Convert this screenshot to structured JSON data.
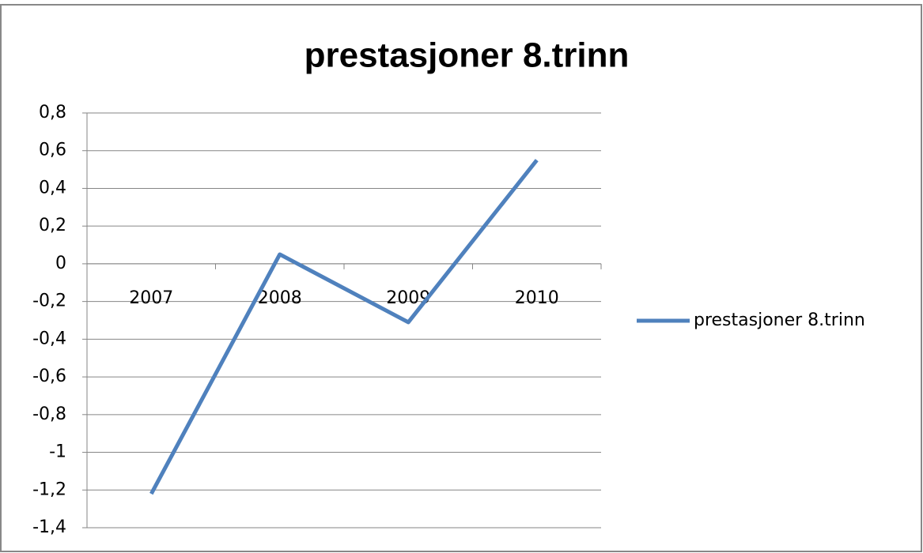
{
  "chart_data": {
    "type": "line",
    "title": "prestasjoner 8.trinn",
    "categories": [
      "2007",
      "2008",
      "2009",
      "2010"
    ],
    "series": [
      {
        "name": "prestasjoner 8.trinn",
        "color": "#4f81bd",
        "values": [
          -1.22,
          0.05,
          -0.31,
          0.55
        ]
      }
    ],
    "ylim": [
      -1.4,
      0.8
    ],
    "yticks": [
      {
        "value": -1.4,
        "label": "-1,4"
      },
      {
        "value": -1.2,
        "label": "-1,2"
      },
      -1,
      {
        "value": -0.8,
        "label": "-0,8"
      },
      {
        "value": -0.6,
        "label": "-0,6"
      },
      {
        "value": -0.4,
        "label": "-0,4"
      },
      {
        "value": -0.2,
        "label": "-0,2"
      },
      0,
      {
        "value": 0.2,
        "label": "0,2"
      },
      {
        "value": 0.4,
        "label": "0,4"
      },
      {
        "value": 0.6,
        "label": "0,6"
      },
      {
        "value": 0.8,
        "label": "0,8"
      }
    ],
    "grid": true,
    "legend": "right"
  }
}
